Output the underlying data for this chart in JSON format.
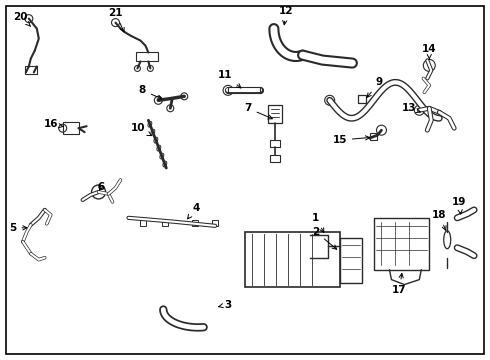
{
  "bg_color": "#ffffff",
  "border_color": "#000000",
  "line_color": "#2a2a2a",
  "fig_width": 4.9,
  "fig_height": 3.6,
  "dpi": 100
}
